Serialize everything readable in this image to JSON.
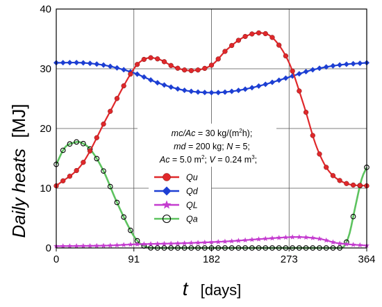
{
  "chart_data": {
    "type": "line",
    "title": "",
    "xlabel_symbol": "t",
    "xlabel_unit": "[days]",
    "ylabel_text": "Daily heats",
    "ylabel_unit": "[MJ]",
    "xlim": [
      0,
      364
    ],
    "ylim": [
      0,
      40
    ],
    "x_ticks": [
      0,
      91,
      182,
      273,
      364
    ],
    "y_ticks": [
      0,
      10,
      20,
      30,
      40
    ],
    "grid": true,
    "legend_placement": "center-left",
    "annotation_lines": [
      "mc/Ac = 30 kg/(m²h);",
      "md = 200 kg;  N = 5;",
      "Ac = 5.0 m²;  V = 0.24 m³;"
    ],
    "series": [
      {
        "name": "Qu",
        "color": "#e0282b",
        "marker": "circle",
        "points": [
          [
            0,
            10.4
          ],
          [
            30,
            14
          ],
          [
            60,
            22
          ],
          [
            91,
            30
          ],
          [
            105,
            31.7
          ],
          [
            120,
            31.6
          ],
          [
            140,
            30.2
          ],
          [
            160,
            29.7
          ],
          [
            182,
            30.6
          ],
          [
            200,
            33.2
          ],
          [
            220,
            35.3
          ],
          [
            240,
            36
          ],
          [
            255,
            35
          ],
          [
            273,
            31
          ],
          [
            290,
            24
          ],
          [
            305,
            17
          ],
          [
            320,
            12.8
          ],
          [
            340,
            10.8
          ],
          [
            364,
            10.4
          ]
        ]
      },
      {
        "name": "Qd",
        "color": "#1d3fd3",
        "marker": "diamond",
        "points": [
          [
            0,
            31
          ],
          [
            30,
            31
          ],
          [
            60,
            30.5
          ],
          [
            91,
            29.3
          ],
          [
            120,
            27.6
          ],
          [
            150,
            26.4
          ],
          [
            182,
            26
          ],
          [
            210,
            26.3
          ],
          [
            240,
            27.2
          ],
          [
            273,
            28.6
          ],
          [
            300,
            29.8
          ],
          [
            330,
            30.6
          ],
          [
            364,
            31
          ]
        ]
      },
      {
        "name": "QL",
        "color": "#c43ccf",
        "marker": "star",
        "points": [
          [
            0,
            0.3
          ],
          [
            60,
            0.4
          ],
          [
            91,
            0.6
          ],
          [
            150,
            0.8
          ],
          [
            200,
            1.1
          ],
          [
            240,
            1.5
          ],
          [
            273,
            1.8
          ],
          [
            290,
            1.8
          ],
          [
            310,
            1.5
          ],
          [
            330,
            0.8
          ],
          [
            364,
            0.4
          ]
        ]
      },
      {
        "name": "Qa",
        "color": "#5dc35f",
        "marker": "circle-open",
        "points": [
          [
            0,
            14
          ],
          [
            10,
            16.8
          ],
          [
            20,
            17.6
          ],
          [
            28,
            17.7
          ],
          [
            40,
            16.5
          ],
          [
            55,
            13
          ],
          [
            70,
            8
          ],
          [
            85,
            3.5
          ],
          [
            95,
            1.2
          ],
          [
            105,
            0.2
          ],
          [
            115,
            0
          ],
          [
            200,
            0
          ],
          [
            300,
            0
          ],
          [
            335,
            0
          ],
          [
            343,
            2
          ],
          [
            350,
            6.5
          ],
          [
            358,
            11.5
          ],
          [
            364,
            13.5
          ]
        ]
      }
    ]
  }
}
